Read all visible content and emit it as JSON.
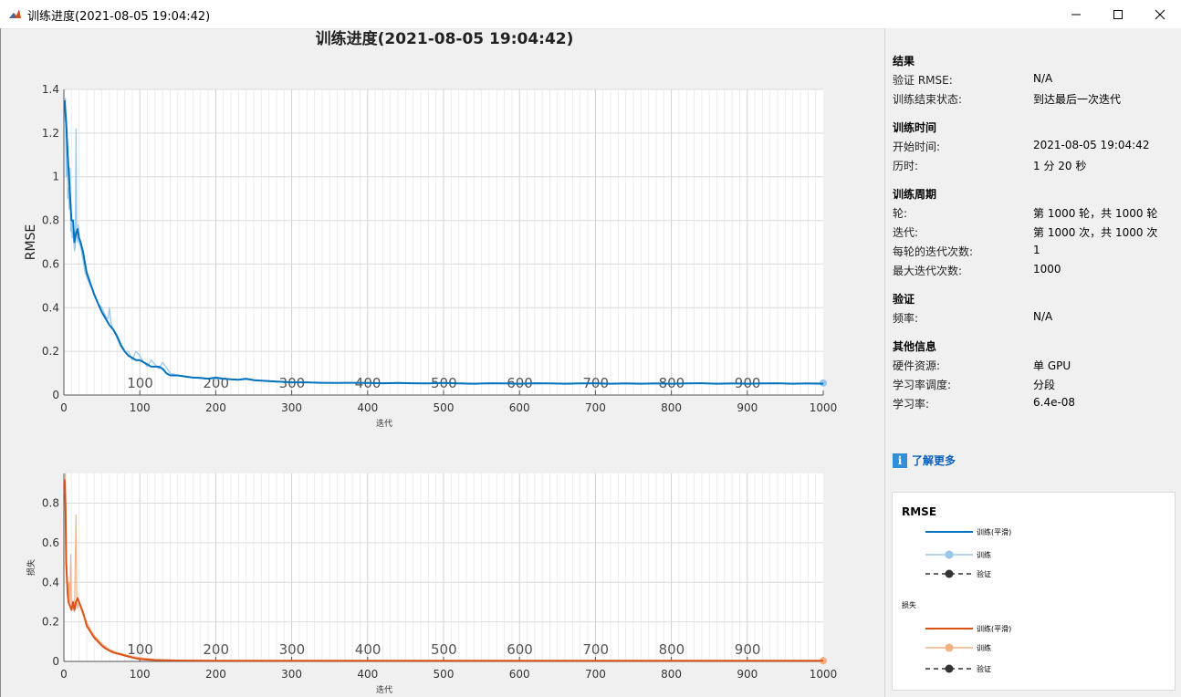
{
  "window": {
    "title": "训练进度(2021-08-05 19:04:42)",
    "minimize_glyph": "—",
    "maximize_glyph": "☐",
    "close_glyph": "✕",
    "icon": "matlab-icon"
  },
  "figure_title": "训练进度(2021-08-05 19:04:42)",
  "chart_data": [
    {
      "type": "line",
      "ylabel": "RMSE",
      "xlabel": "迭代",
      "xlim": [
        0,
        1000
      ],
      "ylim": [
        0,
        1.4
      ],
      "xticks": [
        "0",
        "100",
        "200",
        "300",
        "400",
        "500",
        "600",
        "700",
        "800",
        "900",
        "1000"
      ],
      "yticks": [
        "0",
        "0.2",
        "0.4",
        "0.6",
        "0.8",
        "1",
        "1.2",
        "1.4"
      ],
      "epoch_labels": [
        "100",
        "200",
        "300",
        "400",
        "500",
        "600",
        "700",
        "800",
        "900"
      ],
      "grid": true,
      "series": [
        {
          "name": "训练(平滑)",
          "color": "#0072bd",
          "x": [
            1,
            3,
            5,
            8,
            10,
            12,
            14,
            16,
            18,
            20,
            22,
            25,
            28,
            30,
            33,
            36,
            40,
            45,
            50,
            55,
            60,
            65,
            70,
            75,
            80,
            85,
            90,
            95,
            100,
            105,
            110,
            115,
            120,
            125,
            130,
            135,
            140,
            150,
            160,
            170,
            180,
            190,
            200,
            210,
            220,
            230,
            240,
            250,
            260,
            270,
            280,
            290,
            300,
            320,
            340,
            360,
            380,
            400,
            420,
            440,
            460,
            480,
            500,
            520,
            540,
            560,
            580,
            600,
            620,
            640,
            660,
            680,
            700,
            720,
            740,
            760,
            780,
            800,
            820,
            840,
            860,
            880,
            900,
            920,
            940,
            960,
            980,
            1000
          ],
          "y": [
            1.35,
            1.25,
            1.1,
            0.92,
            0.8,
            0.8,
            0.7,
            0.74,
            0.76,
            0.72,
            0.7,
            0.66,
            0.6,
            0.56,
            0.53,
            0.5,
            0.46,
            0.42,
            0.38,
            0.35,
            0.32,
            0.3,
            0.27,
            0.23,
            0.2,
            0.18,
            0.17,
            0.16,
            0.16,
            0.15,
            0.14,
            0.13,
            0.13,
            0.13,
            0.12,
            0.1,
            0.09,
            0.09,
            0.085,
            0.08,
            0.078,
            0.075,
            0.08,
            0.075,
            0.072,
            0.07,
            0.075,
            0.068,
            0.066,
            0.064,
            0.062,
            0.06,
            0.058,
            0.058,
            0.056,
            0.055,
            0.056,
            0.055,
            0.054,
            0.055,
            0.054,
            0.053,
            0.055,
            0.053,
            0.052,
            0.054,
            0.053,
            0.052,
            0.054,
            0.053,
            0.052,
            0.053,
            0.054,
            0.052,
            0.053,
            0.052,
            0.053,
            0.052,
            0.053,
            0.054,
            0.052,
            0.053,
            0.052,
            0.053,
            0.054,
            0.052,
            0.053,
            0.052
          ]
        },
        {
          "name": "训练",
          "color": "#98c6ea",
          "x": [
            1,
            2,
            3,
            4,
            5,
            6,
            7,
            8,
            9,
            10,
            11,
            12,
            13,
            14,
            15,
            16,
            17,
            18,
            19,
            20,
            22,
            24,
            26,
            28,
            30,
            35,
            40,
            45,
            50,
            55,
            58,
            60,
            62,
            65,
            70,
            75,
            80,
            85,
            90,
            95,
            100,
            105,
            110,
            115,
            120,
            125,
            130,
            140,
            150,
            160,
            170,
            180,
            200,
            250,
            300,
            350,
            400,
            450,
            500,
            550,
            600,
            650,
            700,
            750,
            800,
            850,
            900,
            950,
            1000
          ],
          "y": [
            1.25,
            1.36,
            1.0,
            1.2,
            0.9,
            0.95,
            0.85,
            1.04,
            0.75,
            0.8,
            0.72,
            0.75,
            0.7,
            0.66,
            0.68,
            1.22,
            0.74,
            0.7,
            0.78,
            0.7,
            0.68,
            0.64,
            0.6,
            0.56,
            0.54,
            0.5,
            0.46,
            0.42,
            0.4,
            0.36,
            0.35,
            0.4,
            0.33,
            0.3,
            0.26,
            0.22,
            0.2,
            0.2,
            0.16,
            0.2,
            0.18,
            0.15,
            0.13,
            0.16,
            0.14,
            0.12,
            0.15,
            0.1,
            0.09,
            0.085,
            0.08,
            0.076,
            0.074,
            0.07,
            0.058,
            0.056,
            0.055,
            0.054,
            0.053,
            0.053,
            0.052,
            0.053,
            0.054,
            0.053,
            0.052,
            0.053,
            0.052,
            0.053,
            0.055
          ]
        }
      ]
    },
    {
      "type": "line",
      "ylabel": "损失",
      "xlabel": "迭代",
      "xlim": [
        0,
        1000
      ],
      "ylim": [
        0,
        0.95
      ],
      "xticks": [
        "0",
        "100",
        "200",
        "300",
        "400",
        "500",
        "600",
        "700",
        "800",
        "900",
        "1000"
      ],
      "yticks": [
        "0",
        "0.2",
        "0.4",
        "0.6",
        "0.8"
      ],
      "epoch_labels": [
        "100",
        "200",
        "300",
        "400",
        "500",
        "600",
        "700",
        "800",
        "900"
      ],
      "grid": true,
      "series": [
        {
          "name": "训练(平滑)",
          "color": "#d95319",
          "x": [
            1,
            2,
            3,
            4,
            5,
            6,
            8,
            10,
            12,
            14,
            16,
            18,
            20,
            22,
            25,
            28,
            30,
            35,
            40,
            45,
            50,
            55,
            60,
            65,
            70,
            75,
            80,
            85,
            90,
            95,
            100,
            110,
            120,
            130,
            140,
            150,
            170,
            200,
            250,
            300,
            400,
            500,
            600,
            700,
            800,
            900,
            1000
          ],
          "y": [
            0.92,
            0.8,
            0.5,
            0.42,
            0.34,
            0.3,
            0.28,
            0.26,
            0.3,
            0.26,
            0.3,
            0.32,
            0.3,
            0.28,
            0.25,
            0.21,
            0.18,
            0.15,
            0.12,
            0.1,
            0.08,
            0.065,
            0.055,
            0.045,
            0.04,
            0.035,
            0.03,
            0.025,
            0.02,
            0.015,
            0.012,
            0.009,
            0.007,
            0.006,
            0.005,
            0.0045,
            0.004,
            0.0035,
            0.003,
            0.003,
            0.003,
            0.003,
            0.003,
            0.003,
            0.003,
            0.003,
            0.003
          ]
        },
        {
          "name": "训练",
          "color": "#f4b183",
          "x": [
            1,
            2,
            3,
            4,
            5,
            6,
            7,
            8,
            9,
            10,
            12,
            14,
            16,
            17,
            18,
            20,
            22,
            25,
            30,
            35,
            40,
            50,
            60,
            70,
            80,
            90,
            100,
            120,
            150,
            200,
            300,
            500,
            700,
            900,
            1000
          ],
          "y": [
            0.85,
            0.95,
            0.6,
            0.45,
            0.38,
            0.32,
            0.4,
            0.3,
            0.54,
            0.3,
            0.28,
            0.25,
            0.74,
            0.3,
            0.27,
            0.3,
            0.27,
            0.24,
            0.2,
            0.16,
            0.13,
            0.09,
            0.06,
            0.045,
            0.035,
            0.025,
            0.02,
            0.01,
            0.006,
            0.004,
            0.003,
            0.003,
            0.003,
            0.003,
            0.003
          ]
        }
      ]
    }
  ],
  "side": {
    "results_title": "结果",
    "val_rmse_label": "验证 RMSE:",
    "val_rmse_value": "N/A",
    "end_state_label": "训练结束状态:",
    "end_state_value": "到达最后一次迭代",
    "time_title": "训练时间",
    "start_label": "开始时间:",
    "start_value": "2021-08-05 19:04:42",
    "elapsed_label": "历时:",
    "elapsed_value": "1 分 20 秒",
    "cycle_title": "训练周期",
    "epoch_label": "轮:",
    "epoch_value": "第 1000 轮，共 1000 轮",
    "iter_label": "迭代:",
    "iter_value": "第 1000 次，共 1000 次",
    "iter_per_epoch_label": "每轮的迭代次数:",
    "iter_per_epoch_value": "1",
    "max_iter_label": "最大迭代次数:",
    "max_iter_value": "1000",
    "validation_title": "验证",
    "freq_label": "频率:",
    "freq_value": "N/A",
    "other_title": "其他信息",
    "hw_label": "硬件资源:",
    "hw_value": "单 GPU",
    "lr_sched_label": "学习率调度:",
    "lr_sched_value": "分段",
    "lr_label": "学习率:",
    "lr_value": "6.4e-08",
    "learn_more": "了解更多",
    "info_glyph": "i"
  },
  "legend": {
    "rmse_title": "RMSE",
    "loss_title": "损失",
    "train_smooth": "训练(平滑)",
    "train": "训练",
    "validation": "验证",
    "blue": "#0072bd",
    "light_blue": "#98c6ea",
    "orange": "#d95319",
    "light_orange": "#f4b183",
    "dark": "#333333"
  }
}
